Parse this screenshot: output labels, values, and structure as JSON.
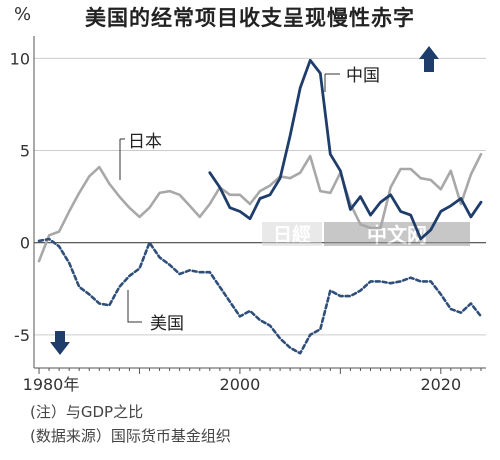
{
  "chart_data": {
    "type": "line",
    "title": "美国的经常项目收支呈现慢性赤字",
    "unit": "%",
    "ylim": [
      -6.8,
      11
    ],
    "xlim": [
      1979.5,
      2024.5
    ],
    "yticks": [
      10,
      5,
      0,
      -5
    ],
    "ytick_labels": [
      "10",
      "5",
      "0",
      "-5"
    ],
    "xticks": [
      1980,
      2000,
      2020
    ],
    "xtick_labels": [
      "1980年",
      "2000",
      "2020"
    ],
    "grid": "horizontal",
    "series": [
      {
        "name": "日本",
        "color": "#a8a8a8",
        "x": [
          1980,
          1981,
          1982,
          1983,
          1984,
          1985,
          1986,
          1987,
          1988,
          1989,
          1990,
          1991,
          1992,
          1993,
          1994,
          1995,
          1996,
          1997,
          1998,
          1999,
          2000,
          2001,
          2002,
          2003,
          2004,
          2005,
          2006,
          2007,
          2008,
          2009,
          2010,
          2011,
          2012,
          2013,
          2014,
          2015,
          2016,
          2017,
          2018,
          2019,
          2020,
          2021,
          2022,
          2023,
          2024
        ],
        "values": [
          -1.0,
          0.4,
          0.6,
          1.7,
          2.7,
          3.6,
          4.1,
          3.2,
          2.5,
          1.9,
          1.4,
          1.9,
          2.7,
          2.8,
          2.6,
          2.0,
          1.4,
          2.1,
          3.0,
          2.6,
          2.6,
          2.1,
          2.8,
          3.1,
          3.6,
          3.5,
          3.8,
          4.7,
          2.8,
          2.7,
          3.8,
          2.1,
          1.0,
          0.8,
          0.8,
          3.0,
          4.0,
          4.0,
          3.5,
          3.4,
          2.9,
          3.9,
          2.1,
          3.7,
          4.8
        ]
      },
      {
        "name": "中国",
        "color": "#1f3d6b",
        "x": [
          1997,
          1998,
          1999,
          2000,
          2001,
          2002,
          2003,
          2004,
          2005,
          2006,
          2007,
          2008,
          2009,
          2010,
          2011,
          2012,
          2013,
          2014,
          2015,
          2016,
          2017,
          2018,
          2019,
          2020,
          2021,
          2022,
          2023,
          2024
        ],
        "values": [
          3.8,
          3.0,
          1.9,
          1.7,
          1.3,
          2.4,
          2.6,
          3.5,
          5.8,
          8.4,
          9.9,
          9.2,
          4.8,
          3.9,
          1.8,
          2.5,
          1.5,
          2.2,
          2.6,
          1.7,
          1.5,
          0.2,
          0.7,
          1.7,
          2.0,
          2.4,
          1.4,
          2.2
        ]
      },
      {
        "name": "美国",
        "color": "#2f4f7a",
        "x": [
          1980,
          1981,
          1982,
          1983,
          1984,
          1985,
          1986,
          1987,
          1988,
          1989,
          1990,
          1991,
          1992,
          1993,
          1994,
          1995,
          1996,
          1997,
          1998,
          1999,
          2000,
          2001,
          2002,
          2003,
          2004,
          2005,
          2006,
          2007,
          2008,
          2009,
          2010,
          2011,
          2012,
          2013,
          2014,
          2015,
          2016,
          2017,
          2018,
          2019,
          2020,
          2021,
          2022,
          2023,
          2024
        ],
        "values": [
          0.1,
          0.2,
          -0.2,
          -1.1,
          -2.4,
          -2.8,
          -3.3,
          -3.4,
          -2.4,
          -1.8,
          -1.4,
          0.0,
          -0.8,
          -1.2,
          -1.7,
          -1.5,
          -1.6,
          -1.6,
          -2.4,
          -3.2,
          -4.0,
          -3.7,
          -4.2,
          -4.5,
          -5.2,
          -5.7,
          -6.0,
          -5.0,
          -4.7,
          -2.6,
          -2.9,
          -2.9,
          -2.6,
          -2.1,
          -2.1,
          -2.2,
          -2.1,
          -1.9,
          -2.1,
          -2.1,
          -2.8,
          -3.6,
          -3.8,
          -3.3,
          -4.0
        ]
      }
    ],
    "annotations": [
      "(注）与GDP之比",
      "(数据来源）国际货币基金组织"
    ],
    "colors": {
      "axis": "#555555",
      "grid": "#cccccc",
      "arrow": "#1f3d6b"
    }
  },
  "watermark": "日經中文网"
}
